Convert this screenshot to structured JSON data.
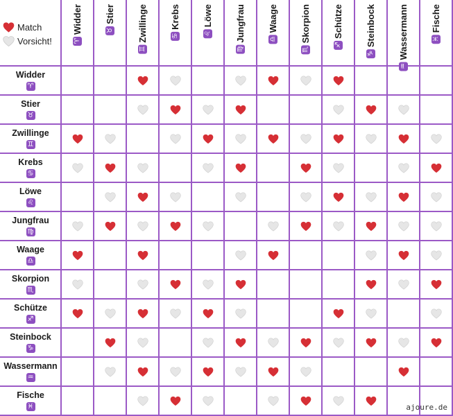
{
  "legend": {
    "match_label": "Match",
    "caution_label": "Vorsicht!"
  },
  "colors": {
    "grid": "#9b59c6",
    "symbol_bg": "#8d4fc0",
    "heart_match": "#d62f35",
    "heart_caution": "#e6e6e6"
  },
  "signs": [
    {
      "name": "Widder",
      "symbol": "♈"
    },
    {
      "name": "Stier",
      "symbol": "♉"
    },
    {
      "name": "Zwillinge",
      "symbol": "♊"
    },
    {
      "name": "Krebs",
      "symbol": "♋"
    },
    {
      "name": "Löwe",
      "symbol": "♌"
    },
    {
      "name": "Jungfrau",
      "symbol": "♍"
    },
    {
      "name": "Waage",
      "symbol": "♎"
    },
    {
      "name": "Skorpion",
      "symbol": "♏"
    },
    {
      "name": "Schütze",
      "symbol": "♐"
    },
    {
      "name": "Steinbock",
      "symbol": "♑"
    },
    {
      "name": "Wassermann",
      "symbol": "♒"
    },
    {
      "name": "Fische",
      "symbol": "♓"
    }
  ],
  "matrix": [
    [
      "",
      "",
      "R",
      "W",
      "",
      "W",
      "R",
      "W",
      "R",
      "",
      "",
      ""
    ],
    [
      "",
      "",
      "W",
      "R",
      "W",
      "R",
      "",
      "",
      "W",
      "R",
      "W",
      ""
    ],
    [
      "R",
      "W",
      "",
      "W",
      "R",
      "W",
      "R",
      "W",
      "R",
      "W",
      "R",
      "W"
    ],
    [
      "W",
      "R",
      "W",
      "",
      "W",
      "R",
      "",
      "R",
      "W",
      "",
      "W",
      "R"
    ],
    [
      "",
      "W",
      "R",
      "W",
      "",
      "W",
      "",
      "W",
      "R",
      "W",
      "R",
      "W"
    ],
    [
      "W",
      "R",
      "W",
      "R",
      "W",
      "",
      "W",
      "R",
      "W",
      "R",
      "W",
      "W"
    ],
    [
      "R",
      "",
      "R",
      "",
      "",
      "W",
      "R",
      "",
      "",
      "W",
      "R",
      "W"
    ],
    [
      "W",
      "",
      "W",
      "R",
      "W",
      "R",
      "",
      "",
      "",
      "R",
      "W",
      "R"
    ],
    [
      "R",
      "W",
      "R",
      "W",
      "R",
      "W",
      "",
      "",
      "R",
      "W",
      "",
      "W"
    ],
    [
      "",
      "R",
      "W",
      "",
      "W",
      "R",
      "W",
      "R",
      "W",
      "R",
      "W",
      "R"
    ],
    [
      "",
      "W",
      "R",
      "W",
      "R",
      "W",
      "R",
      "W",
      "",
      "",
      "R",
      ""
    ],
    [
      "",
      "",
      "W",
      "R",
      "W",
      "",
      "W",
      "R",
      "W",
      "R",
      "",
      ""
    ]
  ],
  "watermark": "ajoure.de"
}
